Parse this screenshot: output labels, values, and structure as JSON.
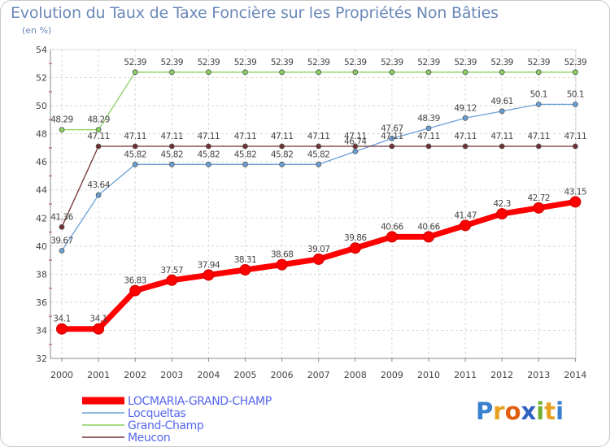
{
  "header": {
    "title": "Evolution du Taux de Taxe Foncière sur les Propriétés Non Bâties",
    "subtitle": "(en %)"
  },
  "logo": {
    "text": "Proxiti",
    "letters": [
      "P",
      "r",
      "o",
      "x",
      "i",
      "t",
      "i"
    ],
    "colors": [
      "#3a7fd0",
      "#e8a020",
      "#e06010",
      "#3060c0",
      "#70b030",
      "#e8a020",
      "#3a7fd0"
    ]
  },
  "chart_data": {
    "type": "line",
    "title": "Evolution du Taux de Taxe Foncière sur les Propriétés Non Bâties",
    "ylabel": "(en %)",
    "xlabel": "",
    "ylim": [
      32,
      54
    ],
    "yticks": [
      32,
      34,
      36,
      38,
      40,
      42,
      44,
      46,
      48,
      50,
      52,
      54
    ],
    "categories": [
      "2000",
      "2001",
      "2002",
      "2003",
      "2004",
      "2005",
      "2006",
      "2007",
      "2008",
      "2009",
      "2010",
      "2011",
      "2012",
      "2013",
      "2014"
    ],
    "grid": true,
    "legend": "bottom-left",
    "series": [
      {
        "name": "LOCMARIA-GRAND-CHAMP",
        "color": "#ff0000",
        "bold": true,
        "values": [
          34.1,
          34.1,
          36.83,
          37.57,
          37.94,
          38.31,
          38.68,
          39.07,
          39.86,
          40.66,
          40.66,
          41.47,
          42.3,
          42.72,
          43.15
        ],
        "labels": [
          "34.1",
          "34.1",
          "36.83",
          "37.57",
          "37.94",
          "38.31",
          "38.68",
          "39.07",
          "39.86",
          "40.66",
          "40.66",
          "41.47",
          "42.3",
          "42.72",
          "43.15"
        ]
      },
      {
        "name": "Locqueltas",
        "color": "#6aa0d8",
        "bold": false,
        "values": [
          39.67,
          43.64,
          45.82,
          45.82,
          45.82,
          45.82,
          45.82,
          45.82,
          46.74,
          47.67,
          48.39,
          49.12,
          49.61,
          50.1,
          50.1
        ],
        "labels": [
          "39.67",
          "43.64",
          "45.82",
          "45.82",
          "45.82",
          "45.82",
          "45.82",
          "45.82",
          "46.74",
          "47.67",
          "48.39",
          "49.12",
          "49.61",
          "50.1",
          "50.1"
        ]
      },
      {
        "name": "Grand-Champ",
        "color": "#88d060",
        "bold": false,
        "values": [
          48.29,
          48.29,
          52.39,
          52.39,
          52.39,
          52.39,
          52.39,
          52.39,
          52.39,
          52.39,
          52.39,
          52.39,
          52.39,
          52.39,
          52.39
        ],
        "labels": [
          "48.29",
          "48.29",
          "52.39",
          "52.39",
          "52.39",
          "52.39",
          "52.39",
          "52.39",
          "52.39",
          "52.39",
          "52.39",
          "52.39",
          "52.39",
          "52.39",
          "52.39"
        ]
      },
      {
        "name": "Meucon",
        "color": "#703030",
        "bold": false,
        "values": [
          41.36,
          47.11,
          47.11,
          47.11,
          47.11,
          47.11,
          47.11,
          47.11,
          47.11,
          47.11,
          47.11,
          47.11,
          47.11,
          47.11,
          47.11
        ],
        "labels": [
          "41.36",
          "47.11",
          "47.11",
          "47.11",
          "47.11",
          "47.11",
          "47.11",
          "47.11",
          "47.11",
          "47.11",
          "47.11",
          "47.11",
          "47.11",
          "47.11",
          "47.11"
        ]
      }
    ]
  }
}
